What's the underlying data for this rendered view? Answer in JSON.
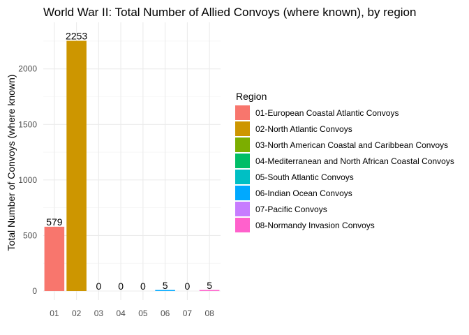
{
  "chart_data": {
    "type": "bar",
    "title": "World War II: Total Number of Allied Convoys (where known), by region",
    "xlabel": "",
    "ylabel": "Total Number of Convoys (where known)",
    "categories": [
      "01",
      "02",
      "03",
      "04",
      "05",
      "06",
      "07",
      "08"
    ],
    "values": [
      579,
      2253,
      0,
      0,
      0,
      5,
      0,
      5
    ],
    "ylim": [
      0,
      2350
    ],
    "yticks": [
      0,
      500,
      1000,
      1500,
      2000
    ],
    "grid": true,
    "legend": {
      "title": "Region",
      "position": "right",
      "entries": [
        {
          "label": "01-European Coastal Atlantic Convoys",
          "color": "#F8766D"
        },
        {
          "label": "02-North Atlantic Convoys",
          "color": "#CD9600"
        },
        {
          "label": "03-North American Coastal and Caribbean Convoys",
          "color": "#7CAE00"
        },
        {
          "label": "04-Mediterranean and North African Coastal Convoys",
          "color": "#00BE67"
        },
        {
          "label": "05-South Atlantic Convoys",
          "color": "#00BFC4"
        },
        {
          "label": "06-Indian Ocean Convoys",
          "color": "#00A9FF"
        },
        {
          "label": "07-Pacific Convoys",
          "color": "#C77CFF"
        },
        {
          "label": "08-Normandy Invasion Convoys",
          "color": "#FF61CC"
        }
      ]
    }
  }
}
